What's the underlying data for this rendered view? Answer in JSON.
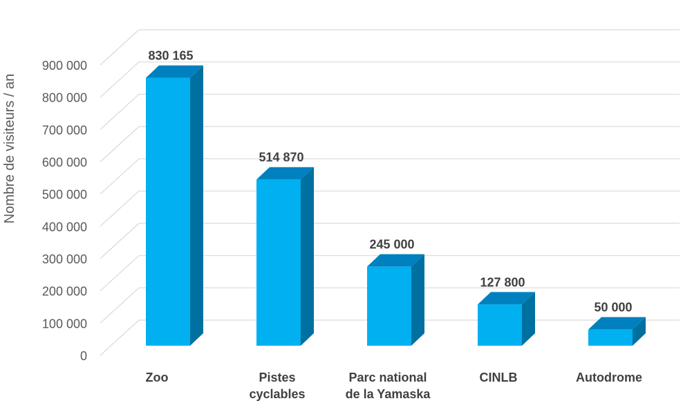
{
  "chart_data": {
    "type": "bar",
    "categories": [
      [
        "Zoo"
      ],
      [
        "Pistes",
        "cyclables"
      ],
      [
        "Parc national",
        "de la Yamaska"
      ],
      [
        "CINLB"
      ],
      [
        "Autodrome"
      ]
    ],
    "values": [
      830165,
      514870,
      245000,
      127800,
      50000
    ],
    "data_labels": [
      "830 165",
      "514 870",
      "245 000",
      "127 800",
      "50 000"
    ],
    "ylabel": "Nombre de visiteurs / an",
    "ylim": [
      0,
      900000
    ],
    "yticks": [
      0,
      100000,
      200000,
      300000,
      400000,
      500000,
      600000,
      700000,
      800000,
      900000
    ],
    "ytick_labels": [
      "0",
      "100 000",
      "200 000",
      "300 000",
      "400 000",
      "500 000",
      "600 000",
      "700 000",
      "800 000",
      "900 000"
    ],
    "grid": true,
    "style": "3d-column",
    "colors": {
      "bar_front": "#00B0F0",
      "bar_side": "#0070A0",
      "bar_top": "#0080BE",
      "grid": "#D9D9D9"
    }
  }
}
